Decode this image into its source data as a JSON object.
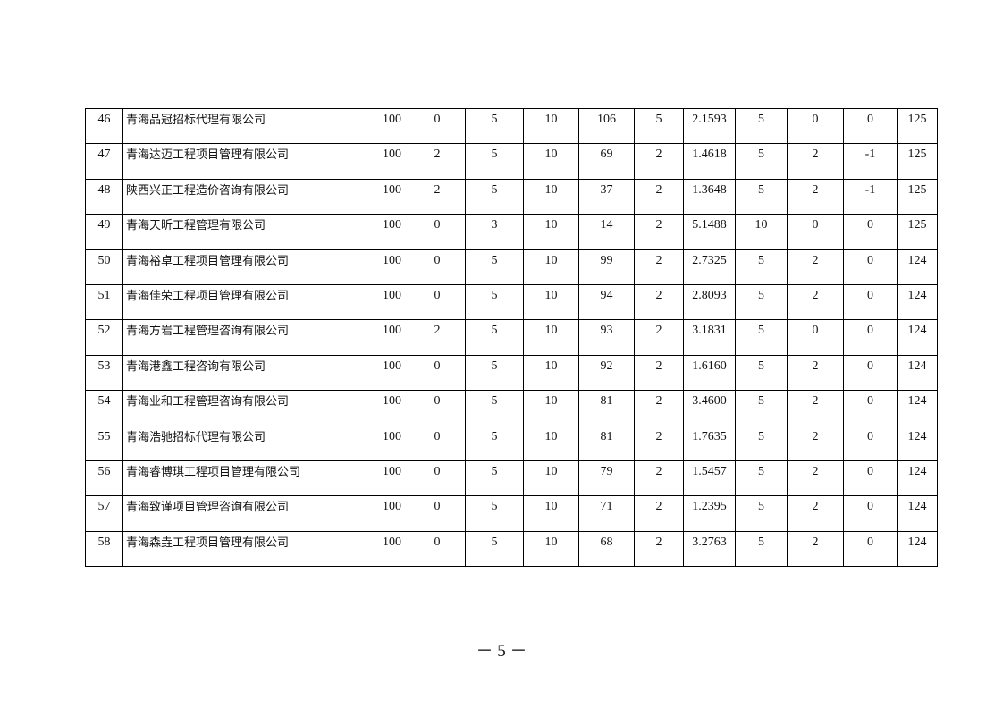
{
  "table": {
    "rows": [
      [
        "46",
        "青海品冠招标代理有限公司",
        "100",
        "0",
        "5",
        "10",
        "106",
        "5",
        "2.1593",
        "5",
        "0",
        "0",
        "125"
      ],
      [
        "47",
        "青海达迈工程项目管理有限公司",
        "100",
        "2",
        "5",
        "10",
        "69",
        "2",
        "1.4618",
        "5",
        "2",
        "-1",
        "125"
      ],
      [
        "48",
        "陕西兴正工程造价咨询有限公司",
        "100",
        "2",
        "5",
        "10",
        "37",
        "2",
        "1.3648",
        "5",
        "2",
        "-1",
        "125"
      ],
      [
        "49",
        "青海天昕工程管理有限公司",
        "100",
        "0",
        "3",
        "10",
        "14",
        "2",
        "5.1488",
        "10",
        "0",
        "0",
        "125"
      ],
      [
        "50",
        "青海裕卓工程项目管理有限公司",
        "100",
        "0",
        "5",
        "10",
        "99",
        "2",
        "2.7325",
        "5",
        "2",
        "0",
        "124"
      ],
      [
        "51",
        "青海佳荣工程项目管理有限公司",
        "100",
        "0",
        "5",
        "10",
        "94",
        "2",
        "2.8093",
        "5",
        "2",
        "0",
        "124"
      ],
      [
        "52",
        "青海方岩工程管理咨询有限公司",
        "100",
        "2",
        "5",
        "10",
        "93",
        "2",
        "3.1831",
        "5",
        "0",
        "0",
        "124"
      ],
      [
        "53",
        "青海港鑫工程咨询有限公司",
        "100",
        "0",
        "5",
        "10",
        "92",
        "2",
        "1.6160",
        "5",
        "2",
        "0",
        "124"
      ],
      [
        "54",
        "青海业和工程管理咨询有限公司",
        "100",
        "0",
        "5",
        "10",
        "81",
        "2",
        "3.4600",
        "5",
        "2",
        "0",
        "124"
      ],
      [
        "55",
        "青海浩驰招标代理有限公司",
        "100",
        "0",
        "5",
        "10",
        "81",
        "2",
        "1.7635",
        "5",
        "2",
        "0",
        "124"
      ],
      [
        "56",
        "青海睿博琪工程项目管理有限公司",
        "100",
        "0",
        "5",
        "10",
        "79",
        "2",
        "1.5457",
        "5",
        "2",
        "0",
        "124"
      ],
      [
        "57",
        "青海致谨项目管理咨询有限公司",
        "100",
        "0",
        "5",
        "10",
        "71",
        "2",
        "1.2395",
        "5",
        "2",
        "0",
        "124"
      ],
      [
        "58",
        "青海森垚工程项目管理有限公司",
        "100",
        "0",
        "5",
        "10",
        "68",
        "2",
        "3.2763",
        "5",
        "2",
        "0",
        "124"
      ]
    ]
  },
  "footer": {
    "page_number": "－ 5 －"
  }
}
